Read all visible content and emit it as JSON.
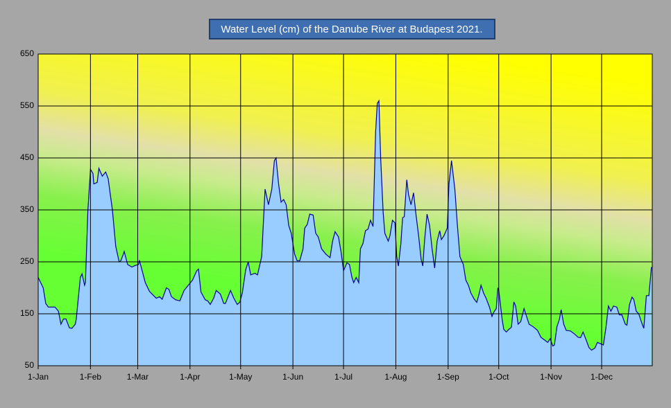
{
  "chart_data": {
    "type": "area",
    "title": "Water Level (cm) of the Danube River at Budapest  2021.",
    "x": [
      0,
      3,
      4.5,
      6,
      10,
      12,
      13.5,
      15,
      16.5,
      18.5,
      20,
      22,
      22.6,
      25,
      26,
      27.5,
      28,
      29.5,
      31,
      32.5,
      33,
      35,
      36,
      38,
      40,
      41.5,
      44,
      46,
      48,
      49,
      50.5,
      51,
      53,
      55.5,
      57.5,
      59.5,
      60,
      61.5,
      63.5,
      66,
      68.5,
      70,
      72,
      73.5,
      76,
      77.5,
      79,
      81.5,
      84,
      86.5,
      89,
      91.5,
      94,
      95,
      96.5,
      99,
      100.5,
      102,
      104,
      105.5,
      108,
      110,
      111,
      114,
      116,
      118,
      119.5,
      121,
      123,
      124.5,
      126,
      128.5,
      130,
      132.5,
      134.5,
      136.5,
      138.5,
      140,
      141,
      142.5,
      144,
      145.5,
      147,
      148.5,
      150,
      152,
      153.5,
      155,
      157,
      158,
      159.5,
      161,
      163,
      164.5,
      166,
      168,
      170.5,
      173,
      174.5,
      176,
      178,
      179.5,
      181,
      183,
      184.5,
      186,
      187,
      188.5,
      190,
      191,
      192.5,
      194,
      195.5,
      197,
      198.5,
      200,
      201,
      202,
      203,
      204.5,
      205.5,
      207.5,
      208.5,
      210,
      211.5,
      212.5,
      213.5,
      215,
      216,
      217,
      218.5,
      219.5,
      221,
      222.5,
      224,
      225.5,
      227,
      228,
      229,
      230.5,
      232,
      233.5,
      235,
      236.5,
      238,
      239,
      240.5,
      242.5,
      243.5,
      245,
      247,
      248.5,
      250,
      252,
      253.5,
      255,
      256.5,
      258.5,
      260,
      261.5,
      262.5,
      264,
      265.5,
      267.5,
      269,
      270,
      271.5,
      272.5,
      273,
      275,
      276,
      277.5,
      279,
      280.5,
      282,
      283,
      284.5,
      286,
      288,
      289.5,
      291,
      293.5,
      296,
      298,
      300,
      302,
      303.5,
      305,
      306,
      307.5,
      309,
      310,
      311.5,
      313,
      315.5,
      318,
      320,
      321.5,
      323,
      325,
      326.5,
      328,
      330,
      331.5,
      333,
      335,
      336.5,
      338,
      339.5,
      341,
      343,
      344.5,
      346,
      348,
      349,
      350.5,
      352,
      353,
      354.5,
      356,
      357.5,
      359,
      360.5,
      362,
      363.5
    ],
    "values": [
      220,
      200,
      170,
      163,
      163,
      155,
      130,
      140,
      140,
      123,
      122,
      130,
      140,
      220,
      227,
      205,
      210,
      350,
      428,
      420,
      400,
      403,
      430,
      415,
      423,
      410,
      350,
      280,
      250,
      252,
      265,
      270,
      245,
      240,
      243,
      245,
      253,
      235,
      210,
      193,
      185,
      180,
      183,
      178,
      200,
      197,
      183,
      177,
      175,
      195,
      205,
      215,
      233,
      236,
      192,
      177,
      175,
      168,
      180,
      195,
      188,
      170,
      170,
      195,
      180,
      168,
      172,
      190,
      235,
      250,
      225,
      228,
      225,
      260,
      390,
      360,
      390,
      445,
      450,
      400,
      365,
      370,
      360,
      320,
      305,
      265,
      252,
      252,
      275,
      315,
      322,
      342,
      340,
      305,
      298,
      275,
      265,
      258,
      290,
      308,
      298,
      270,
      233,
      248,
      245,
      220,
      210,
      220,
      210,
      275,
      285,
      310,
      313,
      330,
      318,
      500,
      555,
      560,
      450,
      345,
      305,
      290,
      300,
      330,
      325,
      260,
      242,
      285,
      335,
      337,
      408,
      380,
      360,
      383,
      340,
      300,
      255,
      242,
      290,
      342,
      320,
      275,
      238,
      290,
      310,
      293,
      300,
      315,
      400,
      445,
      390,
      320,
      260,
      245,
      215,
      205,
      190,
      178,
      172,
      190,
      205,
      190,
      180,
      163,
      145,
      153,
      160,
      200,
      195,
      140,
      120,
      115,
      120,
      124,
      173,
      165,
      130,
      135,
      160,
      145,
      130,
      125,
      118,
      105,
      100,
      95,
      102,
      88,
      90,
      125,
      140,
      158,
      130,
      118,
      117,
      111,
      105,
      104,
      115,
      98,
      85,
      80,
      84,
      95,
      93,
      90,
      122,
      165,
      155,
      165,
      163,
      148,
      148,
      130,
      128,
      168,
      182,
      178,
      155,
      150,
      135,
      122,
      185,
      185,
      240
    ],
    "line_color": "#000099",
    "fill_color": "#99ccff",
    "xlim": [
      0,
      364
    ],
    "xticks": [
      {
        "value": 0,
        "label": "1-Jan"
      },
      {
        "value": 31,
        "label": "1-Feb"
      },
      {
        "value": 59,
        "label": "1-Mar"
      },
      {
        "value": 90,
        "label": "1-Apr"
      },
      {
        "value": 120,
        "label": "1-May"
      },
      {
        "value": 151,
        "label": "1-Jun"
      },
      {
        "value": 181,
        "label": "1-Jul"
      },
      {
        "value": 212,
        "label": "1-Aug"
      },
      {
        "value": 243,
        "label": "1-Sep"
      },
      {
        "value": 273,
        "label": "1-Oct"
      },
      {
        "value": 304,
        "label": "1-Nov"
      },
      {
        "value": 334,
        "label": "1-Dec"
      }
    ],
    "ylim": [
      50,
      650
    ],
    "yticks": [
      50,
      150,
      250,
      350,
      450,
      550,
      650
    ],
    "grid": true
  }
}
